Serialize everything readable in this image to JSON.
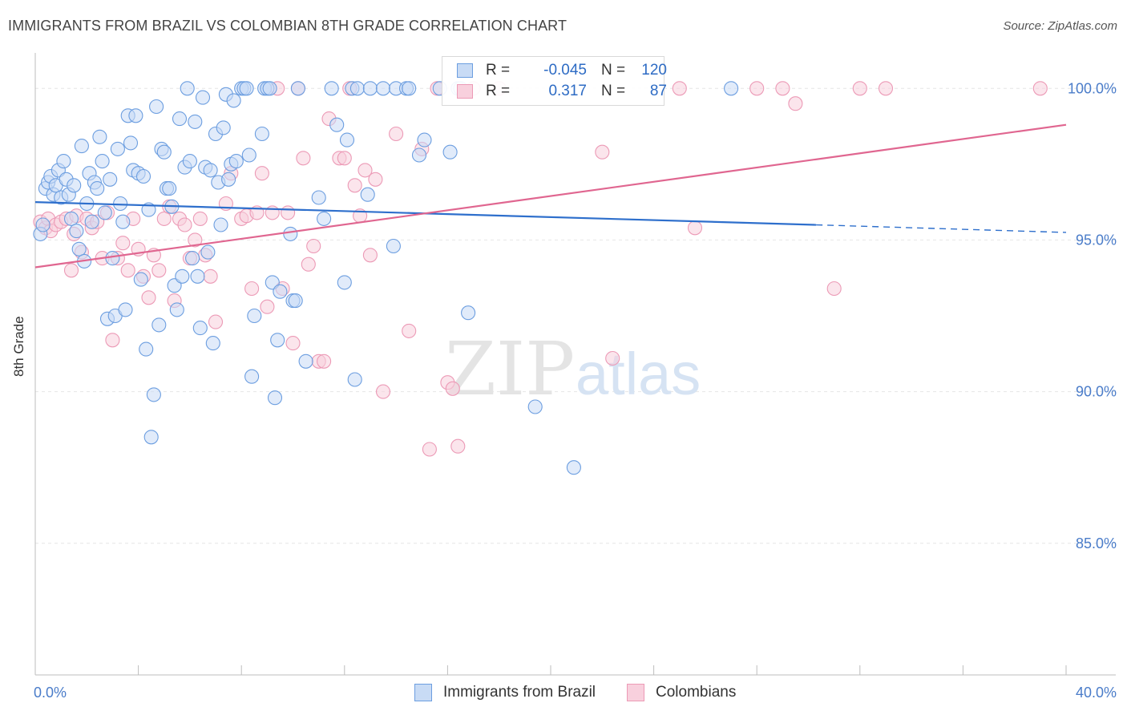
{
  "chart_data": {
    "type": "scatter",
    "title": "IMMIGRANTS FROM BRAZIL VS COLOMBIAN 8TH GRADE CORRELATION CHART",
    "source": "Source: ZipAtlas.com",
    "ylabel": "8th Grade",
    "xlabel": "",
    "xlim": [
      0,
      40
    ],
    "ylim": [
      80.5,
      100.8
    ],
    "x_tick_labels": [
      "0.0%",
      "40.0%"
    ],
    "y_ticks": [
      {
        "value": 100,
        "label": "100.0%"
      },
      {
        "value": 95,
        "label": "95.0%"
      },
      {
        "value": 90,
        "label": "90.0%"
      },
      {
        "value": 85,
        "label": "85.0%"
      }
    ],
    "watermark": "ZIPatlas",
    "series": [
      {
        "name": "Immigrants from Brazil",
        "color": "#6c9ee0",
        "fill": "#c8dbf5",
        "line_color": "#2e6fcc",
        "R": "-0.045",
        "N": "120",
        "trend": {
          "x0": 0,
          "y0": 96.25,
          "x1": 30.3,
          "y1": 95.5,
          "dash_x1": 40,
          "dash_y1": 95.25
        },
        "points": [
          [
            0.2,
            95.2
          ],
          [
            0.3,
            95.5
          ],
          [
            0.4,
            96.7
          ],
          [
            0.5,
            96.9
          ],
          [
            0.6,
            97.1
          ],
          [
            0.7,
            96.5
          ],
          [
            0.8,
            96.8
          ],
          [
            0.9,
            97.3
          ],
          [
            1.0,
            96.4
          ],
          [
            1.1,
            97.6
          ],
          [
            1.2,
            97.0
          ],
          [
            1.3,
            96.5
          ],
          [
            1.4,
            95.7
          ],
          [
            1.5,
            96.8
          ],
          [
            1.6,
            95.3
          ],
          [
            1.7,
            94.7
          ],
          [
            1.8,
            98.1
          ],
          [
            1.9,
            94.3
          ],
          [
            2.0,
            96.2
          ],
          [
            2.1,
            97.2
          ],
          [
            2.2,
            95.6
          ],
          [
            2.3,
            96.9
          ],
          [
            2.4,
            96.7
          ],
          [
            2.5,
            98.4
          ],
          [
            2.6,
            97.6
          ],
          [
            2.7,
            95.9
          ],
          [
            2.8,
            92.4
          ],
          [
            2.9,
            97.0
          ],
          [
            3.0,
            94.4
          ],
          [
            3.1,
            92.5
          ],
          [
            3.2,
            98.0
          ],
          [
            3.3,
            96.2
          ],
          [
            3.4,
            95.6
          ],
          [
            3.5,
            92.7
          ],
          [
            3.6,
            99.1
          ],
          [
            3.7,
            98.2
          ],
          [
            3.8,
            97.3
          ],
          [
            3.9,
            99.1
          ],
          [
            4.0,
            97.2
          ],
          [
            4.1,
            93.7
          ],
          [
            4.2,
            97.1
          ],
          [
            4.3,
            91.4
          ],
          [
            4.4,
            96.0
          ],
          [
            4.5,
            88.5
          ],
          [
            4.6,
            89.9
          ],
          [
            4.7,
            99.4
          ],
          [
            4.8,
            92.2
          ],
          [
            4.9,
            98.0
          ],
          [
            5.0,
            97.9
          ],
          [
            5.1,
            96.7
          ],
          [
            5.2,
            96.7
          ],
          [
            5.3,
            96.1
          ],
          [
            5.4,
            93.5
          ],
          [
            5.5,
            92.7
          ],
          [
            5.6,
            99.0
          ],
          [
            5.7,
            93.8
          ],
          [
            5.8,
            97.4
          ],
          [
            5.9,
            100.0
          ],
          [
            6.0,
            97.6
          ],
          [
            6.1,
            94.4
          ],
          [
            6.2,
            98.9
          ],
          [
            6.3,
            93.8
          ],
          [
            6.4,
            92.1
          ],
          [
            6.5,
            99.7
          ],
          [
            6.6,
            97.4
          ],
          [
            6.7,
            94.6
          ],
          [
            6.8,
            97.3
          ],
          [
            6.9,
            91.6
          ],
          [
            7.0,
            98.5
          ],
          [
            7.1,
            96.9
          ],
          [
            7.2,
            95.5
          ],
          [
            7.3,
            98.7
          ],
          [
            7.4,
            99.8
          ],
          [
            7.5,
            97.0
          ],
          [
            7.6,
            97.5
          ],
          [
            7.7,
            99.6
          ],
          [
            7.8,
            97.6
          ],
          [
            8.0,
            100.0
          ],
          [
            8.1,
            100.0
          ],
          [
            8.2,
            100.0
          ],
          [
            8.3,
            97.8
          ],
          [
            8.4,
            90.5
          ],
          [
            8.5,
            92.5
          ],
          [
            8.8,
            98.5
          ],
          [
            8.9,
            100.0
          ],
          [
            9.0,
            100.0
          ],
          [
            9.1,
            100.0
          ],
          [
            9.2,
            93.6
          ],
          [
            9.3,
            89.8
          ],
          [
            9.4,
            91.7
          ],
          [
            9.5,
            93.3
          ],
          [
            9.9,
            95.2
          ],
          [
            10.0,
            93.0
          ],
          [
            10.1,
            93.0
          ],
          [
            10.2,
            100.0
          ],
          [
            10.5,
            91.0
          ],
          [
            11.0,
            96.4
          ],
          [
            11.2,
            95.7
          ],
          [
            11.5,
            100.0
          ],
          [
            11.7,
            98.8
          ],
          [
            12.0,
            93.6
          ],
          [
            12.1,
            98.3
          ],
          [
            12.3,
            100.0
          ],
          [
            12.4,
            90.4
          ],
          [
            12.5,
            100.0
          ],
          [
            12.9,
            96.5
          ],
          [
            13.0,
            100.0
          ],
          [
            13.5,
            100.0
          ],
          [
            13.9,
            94.8
          ],
          [
            14.0,
            100.0
          ],
          [
            14.4,
            100.0
          ],
          [
            14.5,
            100.0
          ],
          [
            14.9,
            97.8
          ],
          [
            15.1,
            98.3
          ],
          [
            15.7,
            100.0
          ],
          [
            16.1,
            97.9
          ],
          [
            16.4,
            100.0
          ],
          [
            16.5,
            100.0
          ],
          [
            16.8,
            92.6
          ],
          [
            19.4,
            89.5
          ],
          [
            20.9,
            87.5
          ],
          [
            27.0,
            100.0
          ]
        ]
      },
      {
        "name": "Colombians",
        "color": "#ec9ab6",
        "fill": "#f8d0dd",
        "line_color": "#e06690",
        "R": "0.317",
        "N": "87",
        "trend": {
          "x0": 0,
          "y0": 94.1,
          "x1": 40,
          "y1": 98.8
        },
        "points": [
          [
            0.2,
            95.6
          ],
          [
            0.4,
            95.4
          ],
          [
            0.5,
            95.7
          ],
          [
            0.6,
            95.3
          ],
          [
            0.8,
            95.5
          ],
          [
            1.0,
            95.6
          ],
          [
            1.2,
            95.7
          ],
          [
            1.4,
            94.0
          ],
          [
            1.5,
            95.2
          ],
          [
            1.6,
            95.8
          ],
          [
            1.8,
            94.6
          ],
          [
            2.0,
            95.7
          ],
          [
            2.2,
            95.4
          ],
          [
            2.4,
            95.6
          ],
          [
            2.6,
            94.4
          ],
          [
            2.8,
            95.9
          ],
          [
            3.0,
            91.7
          ],
          [
            3.2,
            94.4
          ],
          [
            3.4,
            94.9
          ],
          [
            3.6,
            94.0
          ],
          [
            3.8,
            95.7
          ],
          [
            4.0,
            94.7
          ],
          [
            4.2,
            93.8
          ],
          [
            4.4,
            93.1
          ],
          [
            4.6,
            94.5
          ],
          [
            4.8,
            94.0
          ],
          [
            5.0,
            95.7
          ],
          [
            5.2,
            96.1
          ],
          [
            5.4,
            93.0
          ],
          [
            5.6,
            95.7
          ],
          [
            5.8,
            95.5
          ],
          [
            6.0,
            94.4
          ],
          [
            6.2,
            95.0
          ],
          [
            6.4,
            95.7
          ],
          [
            6.6,
            94.5
          ],
          [
            6.8,
            93.8
          ],
          [
            7.0,
            92.3
          ],
          [
            7.4,
            96.2
          ],
          [
            7.6,
            97.2
          ],
          [
            8.0,
            95.7
          ],
          [
            8.2,
            95.8
          ],
          [
            8.4,
            93.4
          ],
          [
            8.6,
            95.9
          ],
          [
            8.8,
            97.2
          ],
          [
            9.0,
            92.8
          ],
          [
            9.2,
            95.9
          ],
          [
            9.4,
            100.0
          ],
          [
            9.6,
            93.4
          ],
          [
            9.8,
            95.9
          ],
          [
            10.0,
            91.6
          ],
          [
            10.2,
            100.0
          ],
          [
            10.4,
            97.7
          ],
          [
            10.6,
            94.2
          ],
          [
            10.8,
            94.8
          ],
          [
            11.0,
            91.0
          ],
          [
            11.2,
            91.0
          ],
          [
            11.4,
            99.0
          ],
          [
            11.8,
            97.7
          ],
          [
            12.0,
            97.7
          ],
          [
            12.2,
            100.0
          ],
          [
            12.4,
            96.8
          ],
          [
            12.6,
            95.8
          ],
          [
            12.8,
            97.3
          ],
          [
            13.0,
            94.5
          ],
          [
            13.2,
            97.0
          ],
          [
            13.5,
            90.0
          ],
          [
            14.0,
            98.5
          ],
          [
            14.5,
            92.0
          ],
          [
            15.0,
            98.0
          ],
          [
            15.3,
            88.1
          ],
          [
            15.6,
            100.0
          ],
          [
            16.0,
            90.3
          ],
          [
            16.2,
            90.1
          ],
          [
            16.4,
            88.2
          ],
          [
            17.0,
            100.0
          ],
          [
            18.0,
            100.0
          ],
          [
            22.0,
            97.9
          ],
          [
            22.4,
            91.1
          ],
          [
            25.0,
            100.0
          ],
          [
            25.6,
            95.4
          ],
          [
            28.0,
            100.0
          ],
          [
            29.0,
            100.0
          ],
          [
            29.5,
            99.5
          ],
          [
            31.0,
            93.4
          ],
          [
            32.0,
            100.0
          ],
          [
            33.0,
            100.0
          ],
          [
            39.0,
            100.0
          ]
        ]
      }
    ]
  },
  "legend": {
    "r_label": "R =",
    "n_label": "N =",
    "rows": [
      {
        "r": "-0.045",
        "n": "120"
      },
      {
        "r": "0.317",
        "n": "87"
      }
    ]
  },
  "bottom_legend": [
    {
      "label": "Immigrants from Brazil"
    },
    {
      "label": "Colombians"
    }
  ]
}
